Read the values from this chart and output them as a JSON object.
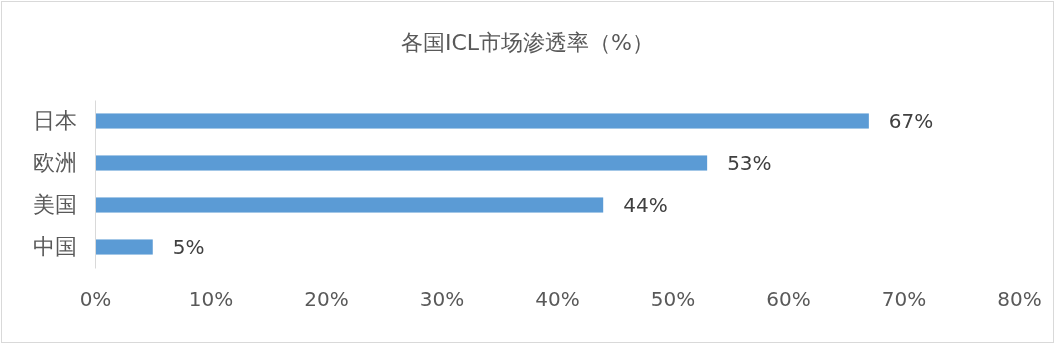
{
  "chart_data": {
    "type": "bar",
    "orientation": "horizontal",
    "title": "各国ICL市场渗透率（%）",
    "categories": [
      "日本",
      "欧洲",
      "美国",
      "中国"
    ],
    "values": [
      67,
      53,
      44,
      5
    ],
    "value_labels": [
      "67%",
      "53%",
      "44%",
      "5%"
    ],
    "color": "#5b9bd5",
    "xlim": [
      0,
      80
    ],
    "xticks": [
      {
        "value": 0,
        "label": "0%"
      },
      {
        "value": 10,
        "label": "10%"
      },
      {
        "value": 20,
        "label": "20%"
      },
      {
        "value": 30,
        "label": "30%"
      },
      {
        "value": 40,
        "label": "40%"
      },
      {
        "value": 50,
        "label": "50%"
      },
      {
        "value": 60,
        "label": "60%"
      },
      {
        "value": 70,
        "label": "70%"
      },
      {
        "value": 80,
        "label": "80%"
      }
    ],
    "grid": false
  }
}
